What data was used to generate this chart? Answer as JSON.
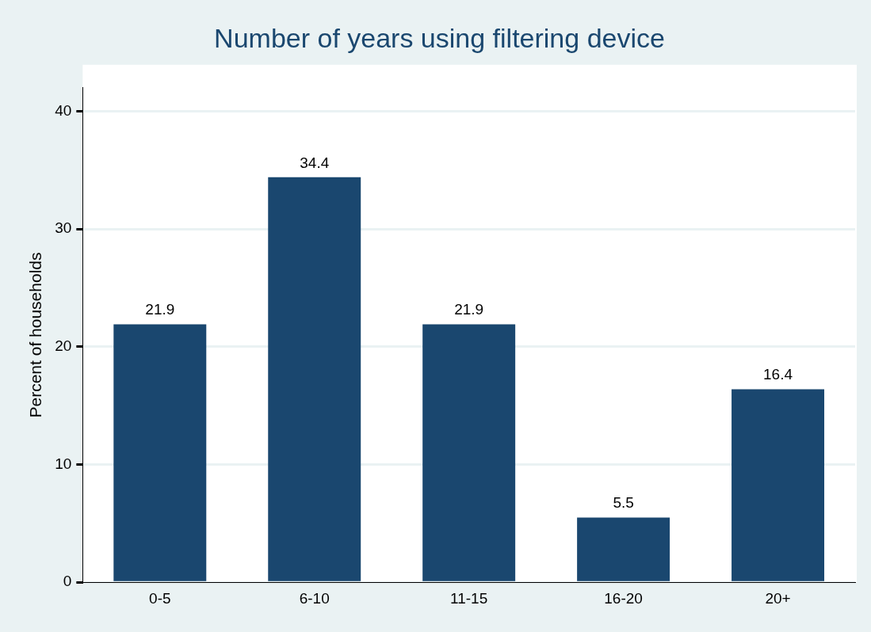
{
  "chart_data": {
    "type": "bar",
    "title": "Number of years using filtering device",
    "ylabel": "Percent of households",
    "categories": [
      "0-5",
      "6-10",
      "11-15",
      "16-20",
      "20+"
    ],
    "values": [
      21.9,
      34.4,
      21.9,
      5.5,
      16.4
    ],
    "color": "#1a476f",
    "ylim": [
      0,
      42
    ],
    "yticks": [
      0,
      10,
      20,
      30,
      40
    ],
    "grid": "y",
    "data_labels": true,
    "legend": false
  }
}
